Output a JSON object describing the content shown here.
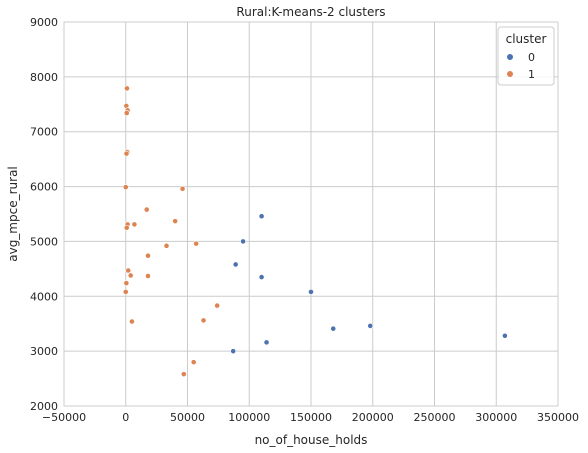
{
  "chart_data": {
    "type": "scatter",
    "title": "Rural:K-means-2 clusters",
    "xlabel": "no_of_house_holds",
    "ylabel": "avg_mpce_rural",
    "xlim": [
      -50000,
      350000
    ],
    "ylim": [
      2000,
      9000
    ],
    "xticks": [
      -50000,
      0,
      50000,
      100000,
      150000,
      200000,
      250000,
      300000,
      350000
    ],
    "yticks": [
      2000,
      3000,
      4000,
      5000,
      6000,
      7000,
      8000,
      9000
    ],
    "xtick_labels": [
      "−50000",
      "0",
      "50000",
      "100000",
      "150000",
      "200000",
      "250000",
      "300000",
      "350000"
    ],
    "ytick_labels": [
      "2000",
      "3000",
      "4000",
      "5000",
      "6000",
      "7000",
      "8000",
      "9000"
    ],
    "grid": true,
    "legend": {
      "title": "cluster",
      "placement": "top-right"
    },
    "series": [
      {
        "name": "0",
        "color": "#4c72b0",
        "points": [
          [
            110000,
            5460
          ],
          [
            95000,
            5000
          ],
          [
            89000,
            4580
          ],
          [
            110000,
            4350
          ],
          [
            150000,
            4080
          ],
          [
            198000,
            3460
          ],
          [
            168000,
            3410
          ],
          [
            114000,
            3160
          ],
          [
            87000,
            3000
          ],
          [
            307000,
            3280
          ]
        ]
      },
      {
        "name": "1",
        "color": "#dd8452",
        "points": [
          [
            1000,
            7790
          ],
          [
            500,
            7470
          ],
          [
            1500,
            7390
          ],
          [
            800,
            7340
          ],
          [
            1200,
            6630
          ],
          [
            600,
            6600
          ],
          [
            0,
            5990
          ],
          [
            46000,
            5960
          ],
          [
            17000,
            5580
          ],
          [
            40000,
            5370
          ],
          [
            1500,
            5310
          ],
          [
            7000,
            5310
          ],
          [
            800,
            5250
          ],
          [
            57000,
            4960
          ],
          [
            33000,
            4920
          ],
          [
            18000,
            4740
          ],
          [
            2000,
            4470
          ],
          [
            4000,
            4380
          ],
          [
            18000,
            4370
          ],
          [
            500,
            4240
          ],
          [
            0,
            4080
          ],
          [
            5000,
            3540
          ],
          [
            74000,
            3830
          ],
          [
            63000,
            3560
          ],
          [
            55000,
            2800
          ],
          [
            47000,
            2580
          ]
        ]
      }
    ]
  }
}
